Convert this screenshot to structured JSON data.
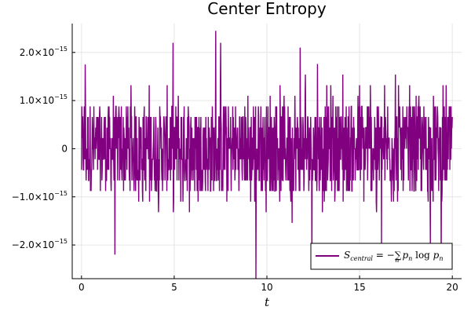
{
  "chart_data": {
    "type": "line",
    "title": "Center Entropy",
    "xlabel": "t",
    "ylabel": "",
    "xlim": [
      -0.5,
      20.5
    ],
    "ylim": [
      -2.7e-15,
      2.6e-15
    ],
    "xticks": [
      0,
      5,
      10,
      15,
      20
    ],
    "xtick_labels": [
      "0",
      "5",
      "10",
      "15",
      "20"
    ],
    "yticks": [
      -2e-15,
      -1e-15,
      0,
      1e-15,
      2e-15
    ],
    "ytick_labels": [
      "−2.0×10",
      "−1.0×10",
      "0",
      "1.0×10",
      "2.0×10"
    ],
    "ytick_exponent": "−15",
    "grid": true,
    "legend_position": "bottom-right",
    "series": [
      {
        "name": "S_central = −∑_n p_n log p_n",
        "color": "#800080",
        "x_start": 0,
        "x_end": 20,
        "n_points": 1200,
        "quantization_step": 2.2e-16,
        "value_range": [
          -2.7e-15,
          2.45e-15
        ],
        "note_values": "dense noise around 0; most values within ±1.1e-15, occasional spikes up to 2.45e-15 and down to -2.7e-15"
      }
    ]
  },
  "legend": {
    "label_main": "S",
    "label_sub": "central",
    "label_rest": " = −",
    "label_sum": "∑",
    "label_sum_sub": "n",
    "label_p": "p",
    "label_p_sub": "n",
    "label_log": " log ",
    "label_p2": "p",
    "label_p2_sub": "n"
  }
}
